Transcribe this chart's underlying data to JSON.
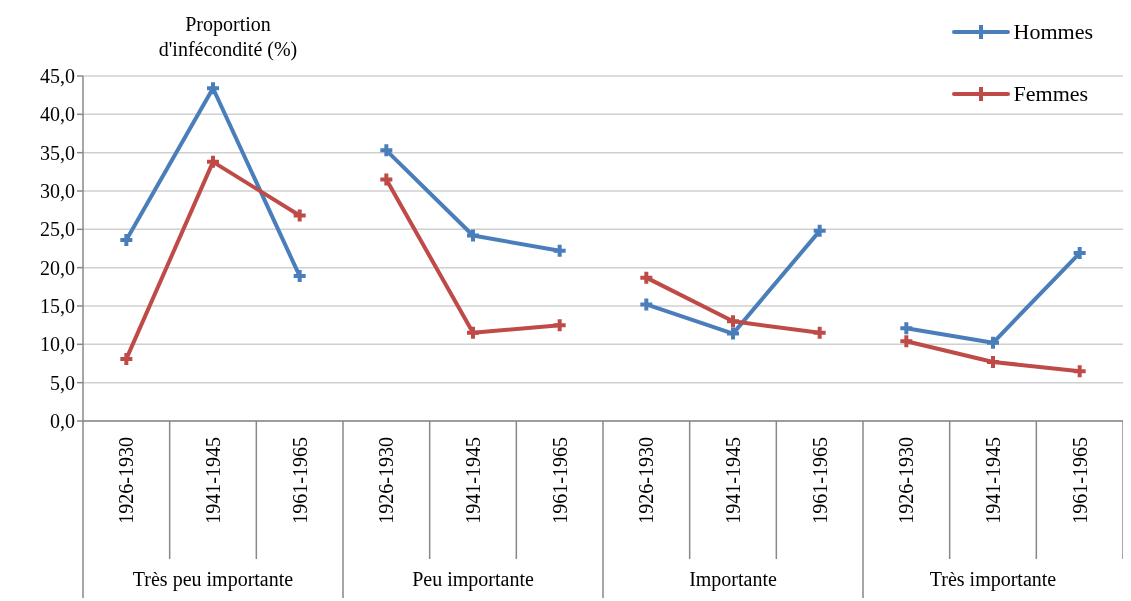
{
  "chart_data": {
    "type": "line",
    "ylabel": "Proportion d'infécondité (%)",
    "categories": [
      "1926-1930",
      "1941-1945",
      "1961-1965",
      "1926-1930",
      "1941-1945",
      "1961-1965",
      "1926-1930",
      "1941-1945",
      "1961-1965",
      "1926-1930",
      "1941-1945",
      "1961-1965"
    ],
    "annotations": [
      "Très peu importante",
      "Peu importante",
      "Importante",
      "Très importante"
    ],
    "series": [
      {
        "name": "Hommes",
        "color": "#4a7ebb",
        "values": [
          23.6,
          43.4,
          18.9,
          35.3,
          24.2,
          22.2,
          15.2,
          11.4,
          24.8,
          12.1,
          10.2,
          21.9
        ]
      },
      {
        "name": "Femmes",
        "color": "#be4b48",
        "values": [
          8.1,
          33.8,
          26.8,
          31.5,
          11.5,
          12.5,
          18.7,
          13.0,
          11.5,
          10.4,
          7.7,
          6.5
        ]
      }
    ],
    "ylim": [
      0,
      45
    ],
    "yticks": [
      {
        "value": 0,
        "label": "0,0"
      },
      {
        "value": 5,
        "label": "5,0"
      },
      {
        "value": 10,
        "label": "10,0"
      },
      {
        "value": 15,
        "label": "15,0"
      },
      {
        "value": 20,
        "label": "20,0"
      },
      {
        "value": 25,
        "label": "25,0"
      },
      {
        "value": 30,
        "label": "30,0"
      },
      {
        "value": 35,
        "label": "35,0"
      },
      {
        "value": 40,
        "label": "40,0"
      },
      {
        "value": 45,
        "label": "45,0"
      }
    ],
    "grid": "y",
    "legend": "top right",
    "marker": "cross",
    "line_style": "solid"
  }
}
